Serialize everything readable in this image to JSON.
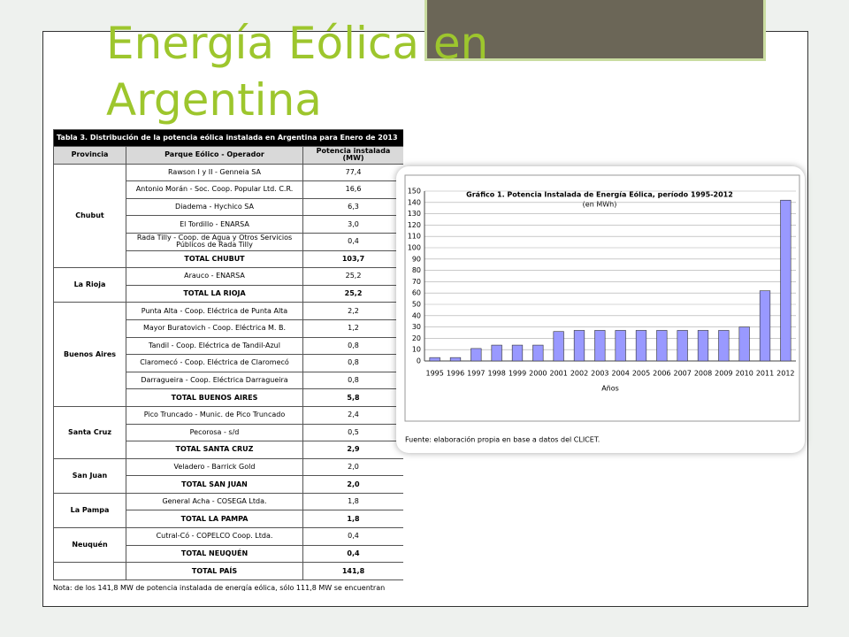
{
  "slide": {
    "title_lines": [
      "Energía Eólica en",
      "Argentina"
    ]
  },
  "table": {
    "caption": "Tabla 3. Distribución de la potencia eólica instalada en Argentina para Enero de 2013",
    "headers": [
      "Provincia",
      "Parque Eólico - Operador",
      "Potencia instalada (MW)"
    ],
    "groups": [
      {
        "province": "Chubut",
        "parks": [
          [
            "Rawson I y II - Genneia SA",
            "77,4"
          ],
          [
            "Antonio Morán - Soc. Coop. Popular Ltd. C.R.",
            "16,6"
          ],
          [
            "Diadema - Hychico SA",
            "6,3"
          ],
          [
            "El Tordillo - ENARSA",
            "3,0"
          ],
          [
            "Rada Tilly - Coop. de Agua y Otros Servicios Públicos de Rada Tilly",
            "0,4"
          ]
        ],
        "total": [
          "TOTAL CHUBUT",
          "103,7"
        ]
      },
      {
        "province": "La Rioja",
        "parks": [
          [
            "Arauco - ENARSA",
            "25,2"
          ]
        ],
        "total": [
          "TOTAL LA RIOJA",
          "25,2"
        ]
      },
      {
        "province": "Buenos Aires",
        "parks": [
          [
            "Punta Alta - Coop. Eléctrica de Punta Alta",
            "2,2"
          ],
          [
            "Mayor Buratovich - Coop. Eléctrica M. B.",
            "1,2"
          ],
          [
            "Tandil - Coop. Eléctrica de Tandil-Azul",
            "0,8"
          ],
          [
            "Claromecó - Coop. Eléctrica de Claromecó",
            "0,8"
          ],
          [
            "Darragueira - Coop. Eléctrica Darragueira",
            "0,8"
          ]
        ],
        "total": [
          "TOTAL BUENOS AIRES",
          "5,8"
        ]
      },
      {
        "province": "Santa Cruz",
        "parks": [
          [
            "Pico Truncado - Munic. de Pico Truncado",
            "2,4"
          ],
          [
            "Pecorosa - s/d",
            "0,5"
          ]
        ],
        "total": [
          "TOTAL SANTA CRUZ",
          "2,9"
        ]
      },
      {
        "province": "San Juan",
        "parks": [
          [
            "Veladero - Barrick Gold",
            "2,0"
          ]
        ],
        "total": [
          "TOTAL SAN JUAN",
          "2,0"
        ]
      },
      {
        "province": "La Pampa",
        "parks": [
          [
            "General Acha - COSEGA Ltda.",
            "1,8"
          ]
        ],
        "total": [
          "TOTAL LA PAMPA",
          "1,8"
        ]
      },
      {
        "province": "Neuquén",
        "parks": [
          [
            "Cutral-Có - COPELCO Coop. Ltda.",
            "0,4"
          ]
        ],
        "total": [
          "TOTAL NEUQUÉN",
          "0,4"
        ]
      }
    ],
    "grand_total": [
      "TOTAL PAÍS",
      "141,8"
    ],
    "note": "Nota: de los 141,8 MW de potencia instalada de energía eólica, sólo 111,8 MW se encuentran"
  },
  "chart_data": {
    "type": "bar",
    "title": "Gráfico 1. Potencia Instalada de Energía Eólica, período 1995-2012",
    "subtitle": "(en MWh)",
    "x_label": "Años",
    "source": "Fuente: elaboración propia en base a datos del CLICET.",
    "categories": [
      "1995",
      "1996",
      "1997",
      "1998",
      "1999",
      "2000",
      "2001",
      "2002",
      "2003",
      "2004",
      "2005",
      "2006",
      "2007",
      "2008",
      "2009",
      "2010",
      "2011",
      "2012"
    ],
    "values": [
      3,
      3,
      11,
      14,
      14,
      14,
      26,
      27,
      27,
      27,
      27,
      27,
      27,
      27,
      27,
      30,
      62,
      142
    ],
    "color": "#9999ff",
    "ylim": [
      0,
      150
    ],
    "yticks": [
      0,
      10,
      20,
      30,
      40,
      50,
      60,
      70,
      80,
      90,
      100,
      110,
      120,
      130,
      140,
      150
    ],
    "grid": true
  }
}
